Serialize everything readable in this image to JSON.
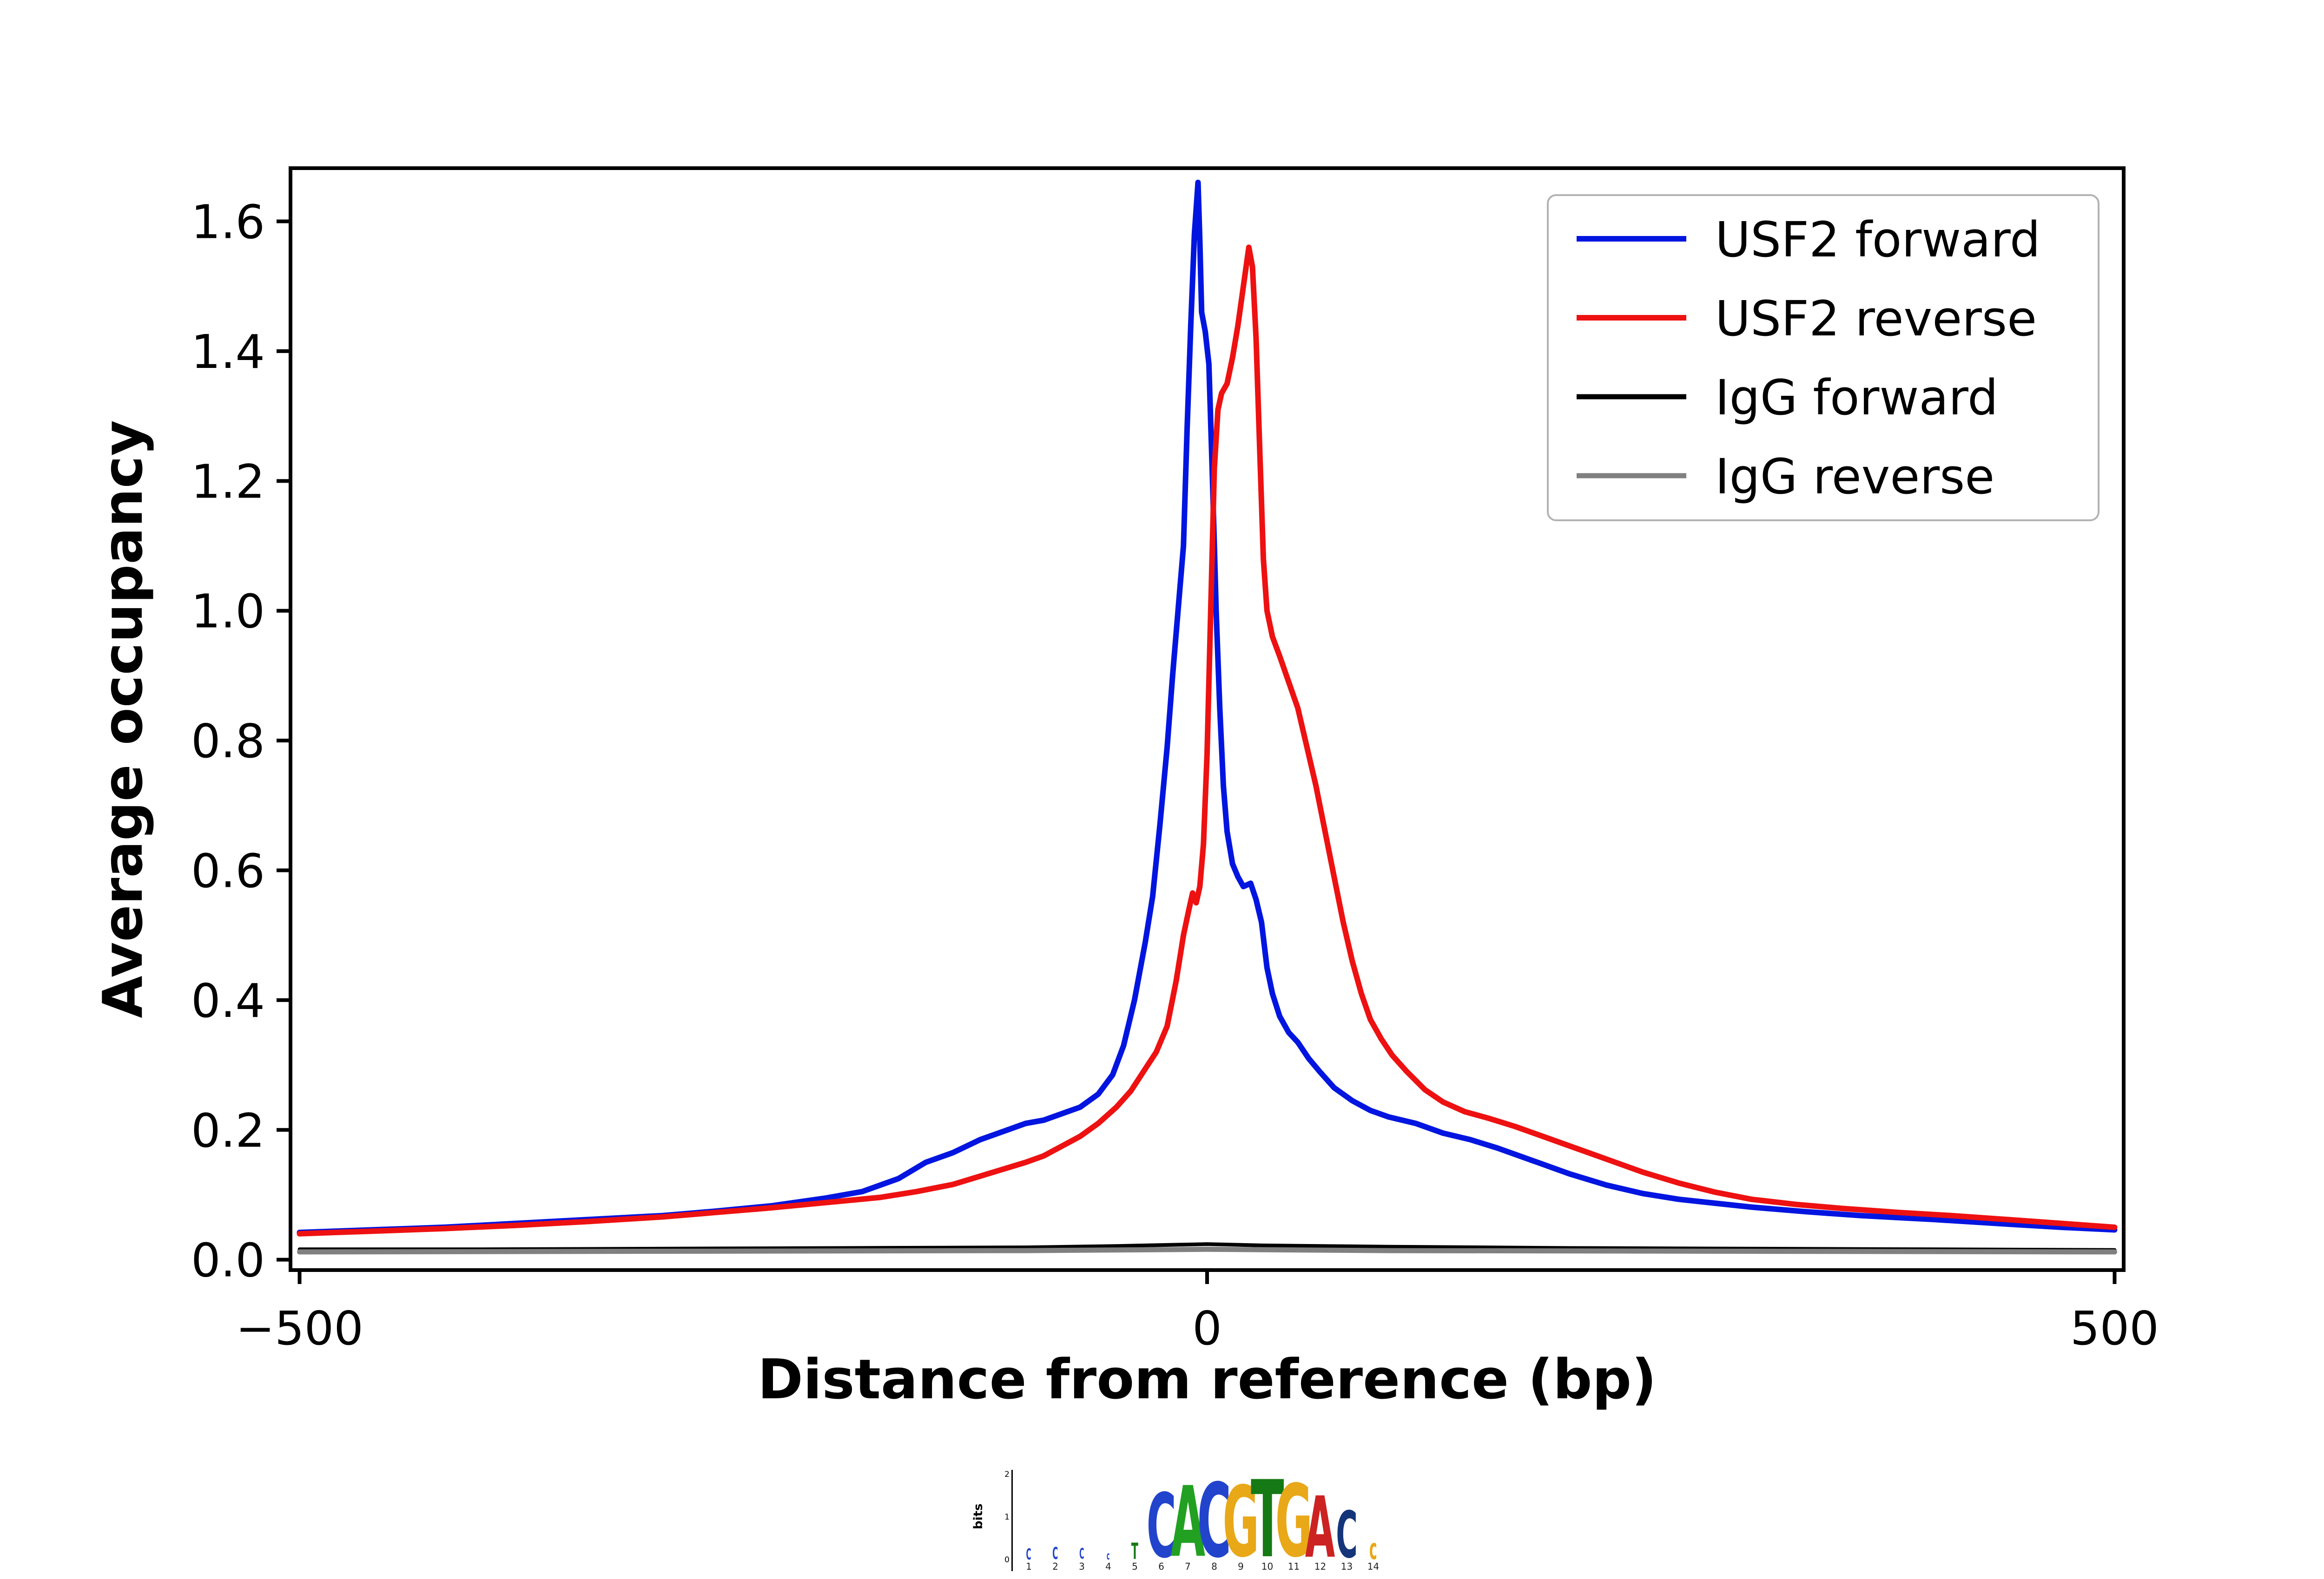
{
  "chart_data": {
    "type": "line",
    "title": "",
    "xlabel": "Distance from reference (bp)",
    "ylabel": "Average occupancy",
    "xlim": [
      -505,
      505
    ],
    "ylim": [
      -0.016,
      1.682
    ],
    "grid": false,
    "legend_position": "upper right",
    "xticks": [
      {
        "value": -500,
        "label": "−500"
      },
      {
        "value": 0,
        "label": "0"
      },
      {
        "value": 500,
        "label": "500"
      }
    ],
    "yticks": [
      {
        "value": 0.0,
        "label": "0.0"
      },
      {
        "value": 0.2,
        "label": "0.2"
      },
      {
        "value": 0.4,
        "label": "0.4"
      },
      {
        "value": 0.6,
        "label": "0.6"
      },
      {
        "value": 0.8,
        "label": "0.8"
      },
      {
        "value": 1.0,
        "label": "1.0"
      },
      {
        "value": 1.2,
        "label": "1.2"
      },
      {
        "value": 1.4,
        "label": "1.4"
      },
      {
        "value": 1.6,
        "label": "1.6"
      }
    ],
    "series": [
      {
        "name": "USF2 forward",
        "color": "#0015e0",
        "lw": 12,
        "points": [
          [
            -500,
            0.042
          ],
          [
            -460,
            0.046
          ],
          [
            -420,
            0.05
          ],
          [
            -380,
            0.056
          ],
          [
            -340,
            0.062
          ],
          [
            -300,
            0.068
          ],
          [
            -270,
            0.075
          ],
          [
            -240,
            0.083
          ],
          [
            -210,
            0.095
          ],
          [
            -190,
            0.105
          ],
          [
            -170,
            0.125
          ],
          [
            -155,
            0.15
          ],
          [
            -140,
            0.165
          ],
          [
            -125,
            0.185
          ],
          [
            -110,
            0.2
          ],
          [
            -100,
            0.21
          ],
          [
            -90,
            0.215
          ],
          [
            -80,
            0.225
          ],
          [
            -70,
            0.235
          ],
          [
            -60,
            0.255
          ],
          [
            -52,
            0.285
          ],
          [
            -46,
            0.33
          ],
          [
            -40,
            0.4
          ],
          [
            -34,
            0.49
          ],
          [
            -30,
            0.56
          ],
          [
            -26,
            0.67
          ],
          [
            -22,
            0.79
          ],
          [
            -19,
            0.9
          ],
          [
            -16,
            1.0
          ],
          [
            -13,
            1.1
          ],
          [
            -11,
            1.28
          ],
          [
            -9,
            1.44
          ],
          [
            -7,
            1.58
          ],
          [
            -5,
            1.66
          ],
          [
            -4,
            1.57
          ],
          [
            -3,
            1.46
          ],
          [
            -1,
            1.43
          ],
          [
            1,
            1.38
          ],
          [
            3,
            1.2
          ],
          [
            5,
            1.0
          ],
          [
            7,
            0.85
          ],
          [
            9,
            0.73
          ],
          [
            11,
            0.66
          ],
          [
            14,
            0.61
          ],
          [
            17,
            0.59
          ],
          [
            20,
            0.575
          ],
          [
            24,
            0.58
          ],
          [
            27,
            0.555
          ],
          [
            30,
            0.52
          ],
          [
            33,
            0.45
          ],
          [
            36,
            0.41
          ],
          [
            40,
            0.375
          ],
          [
            45,
            0.35
          ],
          [
            50,
            0.335
          ],
          [
            56,
            0.31
          ],
          [
            62,
            0.29
          ],
          [
            70,
            0.265
          ],
          [
            80,
            0.245
          ],
          [
            90,
            0.23
          ],
          [
            100,
            0.22
          ],
          [
            115,
            0.21
          ],
          [
            130,
            0.195
          ],
          [
            145,
            0.185
          ],
          [
            160,
            0.172
          ],
          [
            180,
            0.152
          ],
          [
            200,
            0.132
          ],
          [
            220,
            0.115
          ],
          [
            240,
            0.102
          ],
          [
            260,
            0.093
          ],
          [
            280,
            0.087
          ],
          [
            300,
            0.081
          ],
          [
            330,
            0.074
          ],
          [
            360,
            0.068
          ],
          [
            400,
            0.062
          ],
          [
            440,
            0.055
          ],
          [
            470,
            0.05
          ],
          [
            500,
            0.046
          ]
        ]
      },
      {
        "name": "USF2 reverse",
        "color": "#ee1111",
        "lw": 12,
        "points": [
          [
            -500,
            0.04
          ],
          [
            -460,
            0.044
          ],
          [
            -420,
            0.048
          ],
          [
            -380,
            0.053
          ],
          [
            -340,
            0.059
          ],
          [
            -300,
            0.066
          ],
          [
            -270,
            0.073
          ],
          [
            -240,
            0.08
          ],
          [
            -210,
            0.088
          ],
          [
            -180,
            0.096
          ],
          [
            -160,
            0.105
          ],
          [
            -140,
            0.116
          ],
          [
            -120,
            0.133
          ],
          [
            -100,
            0.15
          ],
          [
            -90,
            0.16
          ],
          [
            -80,
            0.175
          ],
          [
            -70,
            0.19
          ],
          [
            -60,
            0.21
          ],
          [
            -50,
            0.235
          ],
          [
            -42,
            0.26
          ],
          [
            -35,
            0.29
          ],
          [
            -28,
            0.32
          ],
          [
            -22,
            0.36
          ],
          [
            -17,
            0.43
          ],
          [
            -13,
            0.5
          ],
          [
            -10,
            0.54
          ],
          [
            -8,
            0.565
          ],
          [
            -6,
            0.55
          ],
          [
            -4,
            0.575
          ],
          [
            -2,
            0.64
          ],
          [
            0,
            0.78
          ],
          [
            2,
            1.0
          ],
          [
            4,
            1.22
          ],
          [
            6,
            1.31
          ],
          [
            8,
            1.335
          ],
          [
            11,
            1.35
          ],
          [
            14,
            1.39
          ],
          [
            17,
            1.44
          ],
          [
            20,
            1.5
          ],
          [
            23,
            1.56
          ],
          [
            25,
            1.53
          ],
          [
            27,
            1.42
          ],
          [
            29,
            1.25
          ],
          [
            31,
            1.08
          ],
          [
            33,
            1.0
          ],
          [
            36,
            0.96
          ],
          [
            40,
            0.93
          ],
          [
            45,
            0.89
          ],
          [
            50,
            0.85
          ],
          [
            55,
            0.79
          ],
          [
            60,
            0.73
          ],
          [
            65,
            0.66
          ],
          [
            70,
            0.59
          ],
          [
            75,
            0.52
          ],
          [
            80,
            0.46
          ],
          [
            85,
            0.41
          ],
          [
            90,
            0.37
          ],
          [
            96,
            0.34
          ],
          [
            102,
            0.315
          ],
          [
            110,
            0.29
          ],
          [
            120,
            0.262
          ],
          [
            130,
            0.243
          ],
          [
            142,
            0.228
          ],
          [
            155,
            0.218
          ],
          [
            170,
            0.205
          ],
          [
            185,
            0.19
          ],
          [
            200,
            0.175
          ],
          [
            220,
            0.155
          ],
          [
            240,
            0.135
          ],
          [
            260,
            0.118
          ],
          [
            280,
            0.104
          ],
          [
            300,
            0.093
          ],
          [
            325,
            0.085
          ],
          [
            350,
            0.079
          ],
          [
            380,
            0.073
          ],
          [
            410,
            0.068
          ],
          [
            440,
            0.062
          ],
          [
            470,
            0.056
          ],
          [
            500,
            0.05
          ]
        ]
      },
      {
        "name": "IgG forward",
        "color": "#000000",
        "lw": 8,
        "points": [
          [
            -500,
            0.016
          ],
          [
            -400,
            0.016
          ],
          [
            -300,
            0.017
          ],
          [
            -200,
            0.018
          ],
          [
            -100,
            0.019
          ],
          [
            -50,
            0.021
          ],
          [
            0,
            0.024
          ],
          [
            30,
            0.022
          ],
          [
            100,
            0.02
          ],
          [
            200,
            0.018
          ],
          [
            300,
            0.017
          ],
          [
            400,
            0.016
          ],
          [
            500,
            0.015
          ]
        ]
      },
      {
        "name": "IgG reverse",
        "color": "#808080",
        "lw": 11,
        "points": [
          [
            -500,
            0.012
          ],
          [
            -300,
            0.013
          ],
          [
            -100,
            0.014
          ],
          [
            0,
            0.016
          ],
          [
            100,
            0.014
          ],
          [
            300,
            0.013
          ],
          [
            500,
            0.012
          ]
        ]
      }
    ]
  },
  "legend": {
    "border_color": "#b3b3b3",
    "background": "#ffffff"
  },
  "logo": {
    "ylabel": "bits",
    "axis_ticks": [
      "2",
      "1",
      "0"
    ],
    "positions": [
      {
        "ch": "C",
        "color": "#2244cc",
        "h": 0.14,
        "num": "1"
      },
      {
        "ch": "C",
        "color": "#2244cc",
        "h": 0.15,
        "num": "2"
      },
      {
        "ch": "C",
        "color": "#2244cc",
        "h": 0.13,
        "num": "3"
      },
      {
        "ch": "c",
        "color": "#2244cc",
        "h": 0.1,
        "num": "4"
      },
      {
        "ch": "T",
        "color": "#157a15",
        "h": 0.2,
        "num": "5"
      },
      {
        "ch": "C",
        "color": "#2244cc",
        "h": 0.8,
        "num": "6"
      },
      {
        "ch": "A",
        "color": "#22a022",
        "h": 0.88,
        "num": "7"
      },
      {
        "ch": "C",
        "color": "#2244cc",
        "h": 0.92,
        "num": "8"
      },
      {
        "ch": "G",
        "color": "#e8a818",
        "h": 0.88,
        "num": "9"
      },
      {
        "ch": "T",
        "color": "#157a15",
        "h": 0.96,
        "num": "10"
      },
      {
        "ch": "G",
        "color": "#e8a818",
        "h": 0.9,
        "num": "11"
      },
      {
        "ch": "A",
        "color": "#cc2222",
        "h": 0.76,
        "num": "12"
      },
      {
        "ch": "C",
        "color": "#15357a",
        "h": 0.58,
        "num": "13"
      },
      {
        "ch": "c",
        "color": "#e8a818",
        "h": 0.26,
        "num": "14"
      }
    ]
  }
}
